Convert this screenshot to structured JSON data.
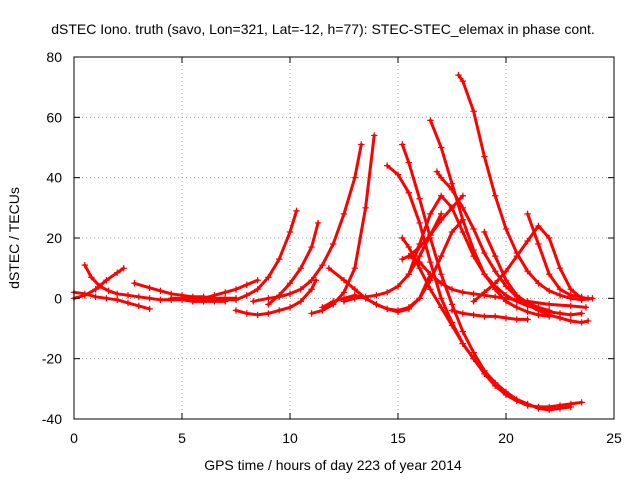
{
  "chart_data": {
    "type": "scatter",
    "title": "dSTEC Iono. truth (savo, Lon=321, Lat=-12, h=77): STEC-STEC_elemax in phase cont.",
    "xlabel": "GPS time / hours of day 223 of year 2014",
    "ylabel": "dSTEC  / TECUs",
    "xlim": [
      0,
      25
    ],
    "ylim": [
      -40,
      80
    ],
    "xticks": [
      0,
      5,
      10,
      15,
      20,
      25
    ],
    "yticks": [
      -40,
      -20,
      0,
      20,
      40,
      60,
      80
    ],
    "grid": true,
    "legend": "none",
    "color": "#ff0000",
    "series": [
      {
        "x": [
          0.0,
          0.5,
          1.0,
          1.5,
          2.0,
          2.5,
          3.0,
          3.5
        ],
        "y": [
          2,
          1.5,
          0.5,
          0,
          -0.5,
          -1.5,
          -2.5,
          -3.5
        ]
      },
      {
        "x": [
          0.5,
          0.8,
          1.2,
          1.6,
          2.0,
          2.5,
          3.0,
          3.5,
          4.0,
          4.5,
          5.0,
          5.5,
          6.0,
          6.5,
          7.0
        ],
        "y": [
          11,
          7,
          4,
          2.5,
          1.5,
          1,
          0.5,
          0,
          -0.5,
          -0.5,
          -0.5,
          -1,
          -1,
          -1,
          -1
        ]
      },
      {
        "x": [
          0.0,
          0.5,
          1.0,
          1.5,
          2.0,
          2.3
        ],
        "y": [
          0,
          1,
          3,
          6,
          8.5,
          10
        ]
      },
      {
        "x": [
          2.8,
          3.5,
          4.0,
          4.5,
          5.0,
          5.5,
          6.0,
          6.5,
          7.0,
          7.5
        ],
        "y": [
          5,
          3.5,
          2.5,
          1.5,
          1,
          0.5,
          0.5,
          0,
          0,
          0
        ]
      },
      {
        "x": [
          4.5,
          5.5,
          6.5,
          7.5,
          8.0,
          8.5,
          9.0,
          9.5,
          10.0,
          10.3
        ],
        "y": [
          0,
          0,
          -0.5,
          -0.5,
          1,
          3,
          7,
          13,
          22,
          29
        ]
      },
      {
        "x": [
          5.5,
          6.0,
          6.5,
          7.0,
          7.5,
          8.0,
          8.5
        ],
        "y": [
          -1,
          0,
          1,
          2,
          3,
          4.5,
          6
        ]
      },
      {
        "x": [
          7.5,
          8.0,
          8.5,
          9.0,
          9.5,
          10.0,
          10.5,
          11.0,
          11.2
        ],
        "y": [
          -4,
          -5,
          -5.5,
          -5,
          -4,
          -3,
          -1,
          3,
          6
        ]
      },
      {
        "x": [
          8.3,
          9.0,
          9.5,
          10.0,
          10.5,
          11.0,
          11.5,
          12.0,
          12.5,
          13.0,
          13.3
        ],
        "y": [
          -1,
          0,
          0.5,
          1.5,
          3,
          6,
          11,
          18,
          28,
          40,
          51
        ]
      },
      {
        "x": [
          9.0,
          9.5,
          10.0,
          10.5,
          11.0,
          11.3
        ],
        "y": [
          -2,
          1,
          5,
          10,
          17,
          25
        ]
      },
      {
        "x": [
          11.0,
          11.5,
          12.0,
          12.5,
          13.0,
          13.5,
          13.9
        ],
        "y": [
          -5,
          -4,
          -2,
          2,
          10,
          30,
          54
        ]
      },
      {
        "x": [
          11.5,
          12.0,
          12.5,
          13.0,
          13.5,
          14.0,
          14.5,
          15.0,
          15.5,
          16.0,
          16.5
        ],
        "y": [
          -3,
          -1,
          0,
          1,
          0,
          -2,
          -3.5,
          -4.5,
          -3.5,
          0,
          8
        ]
      },
      {
        "x": [
          11.8,
          12.5,
          13.0,
          13.5,
          14.0,
          14.5,
          15.0,
          15.5,
          16.0,
          16.5,
          17.0,
          17.5,
          18.0
        ],
        "y": [
          10,
          6,
          3,
          0,
          -2,
          -3.5,
          -4,
          -3,
          0,
          6,
          14,
          22,
          26
        ]
      },
      {
        "x": [
          14.5,
          15.0,
          15.5,
          16.0,
          16.5,
          17.0,
          17.5,
          18.0,
          18.5
        ],
        "y": [
          44,
          41,
          35,
          25,
          12,
          0,
          -8,
          -15,
          -20
        ]
      },
      {
        "x": [
          15.2,
          15.5,
          16.0,
          16.5,
          17.0,
          17.5,
          18.0,
          18.5,
          19.0,
          19.5,
          20.0,
          20.5,
          21.0,
          21.5,
          22.0,
          22.5,
          23.0,
          23.5
        ],
        "y": [
          20,
          17,
          10,
          3,
          -3,
          -9,
          -15,
          -20,
          -25,
          -29,
          -32,
          -34,
          -35.5,
          -36,
          -36,
          -35.5,
          -35,
          -34.5
        ]
      },
      {
        "x": [
          15.2,
          15.5,
          16.0,
          16.5,
          17.0,
          17.5,
          18.0,
          18.5,
          19.0,
          19.5,
          20.0,
          20.5,
          21.0,
          21.5,
          22.0,
          22.5,
          23.0
        ],
        "y": [
          51,
          45,
          33,
          20,
          8,
          -2,
          -11,
          -18,
          -24,
          -28,
          -31,
          -33.5,
          -35,
          -36.5,
          -37,
          -36.5,
          -36
        ]
      },
      {
        "x": [
          15.2,
          15.5,
          16.0,
          16.5,
          17.0,
          17.5,
          18.0
        ],
        "y": [
          13,
          14,
          17,
          21,
          26,
          30,
          34
        ]
      },
      {
        "x": [
          15.5,
          16.0,
          16.5,
          17.0,
          17.5,
          18.0,
          18.5,
          19.0,
          19.5,
          20.0,
          21.0,
          22.0,
          23.0,
          23.7
        ],
        "y": [
          14,
          12,
          8,
          5,
          3,
          2,
          1.5,
          1,
          0.5,
          0,
          -1,
          -2,
          -2.5,
          -3
        ]
      },
      {
        "x": [
          16.5,
          17.0,
          17.5,
          18.0,
          18.5,
          19.0,
          19.5,
          20.0,
          20.5,
          21.0,
          21.5,
          22.0
        ],
        "y": [
          59,
          50,
          38,
          26,
          16,
          8,
          3,
          -1,
          -3,
          -4.5,
          -5.5,
          -6
        ]
      },
      {
        "x": [
          16.8,
          17.0,
          17.5,
          18.0,
          18.5,
          19.0,
          19.5,
          20.0,
          20.5,
          21.0,
          21.5,
          22.0,
          22.5,
          23.0,
          23.5,
          23.8
        ],
        "y": [
          42,
          40,
          36,
          30,
          23,
          15,
          9,
          4,
          0.5,
          -2,
          -4,
          -5.5,
          -6.5,
          -7.5,
          -8,
          -7.5
        ]
      },
      {
        "x": [
          17.8,
          18.0,
          18.5,
          19.0,
          19.5,
          20.0,
          20.5,
          21.0,
          21.5,
          22.0,
          22.5,
          23.0,
          23.5,
          24.0
        ],
        "y": [
          74,
          72,
          62,
          47,
          34,
          23,
          15,
          9,
          5,
          2.5,
          1,
          0,
          -0.5,
          0
        ]
      },
      {
        "x": [
          19.0,
          19.5,
          20.0,
          20.5,
          21.0,
          21.5,
          22.0
        ],
        "y": [
          22,
          14,
          6,
          1,
          -1.5,
          -3,
          -4
        ]
      },
      {
        "x": [
          17.5,
          18.0,
          18.5,
          19.0,
          19.5,
          20.0,
          20.5,
          21.0
        ],
        "y": [
          -4,
          -5,
          -5.5,
          -6,
          -6,
          -6.5,
          -7,
          -7
        ]
      },
      {
        "x": [
          18.5,
          19.0,
          19.5,
          20.0,
          20.5,
          21.0,
          21.5,
          22.0,
          22.5,
          23.0,
          23.5,
          23.8
        ],
        "y": [
          -1,
          2,
          5,
          9,
          14,
          19,
          24,
          20,
          10,
          3,
          0,
          0
        ]
      },
      {
        "x": [
          21.0,
          21.5,
          22.0,
          22.5,
          23.0,
          23.5
        ],
        "y": [
          28,
          18,
          8,
          3,
          1,
          0.5
        ]
      },
      {
        "x": [
          15.5,
          16.0,
          16.5,
          17.0,
          17.5,
          18.0,
          18.5,
          19.0,
          19.5,
          20.0,
          20.5,
          21.0,
          21.5,
          22.0,
          22.5,
          23.0,
          23.5
        ],
        "y": [
          8,
          18,
          28,
          34,
          30,
          22,
          14,
          8,
          4,
          1,
          -1,
          -2.5,
          -3.5,
          -4.5,
          -5,
          -5.5,
          -5
        ]
      },
      {
        "x": [
          12.5,
          13.0,
          13.5,
          14.0,
          14.5,
          15.0,
          15.5,
          16.0,
          16.5,
          17.0
        ],
        "y": [
          -1,
          0,
          0.5,
          1,
          2,
          4,
          8,
          14,
          21,
          28
        ]
      }
    ]
  }
}
